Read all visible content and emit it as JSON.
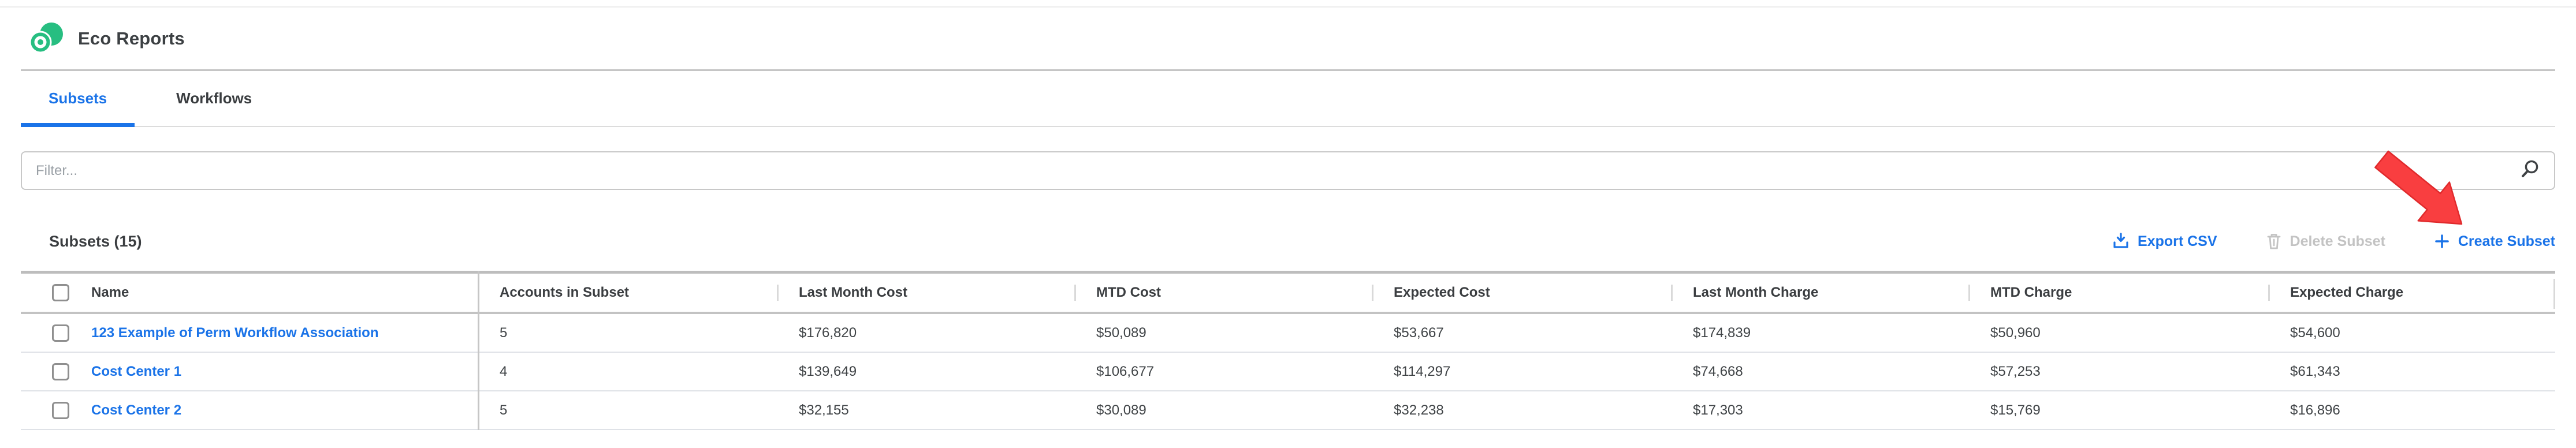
{
  "app": {
    "title": "Eco Reports"
  },
  "tabs": [
    {
      "label": "Subsets",
      "active": true
    },
    {
      "label": "Workflows",
      "active": false
    }
  ],
  "filter": {
    "placeholder": "Filter..."
  },
  "section": {
    "heading": "Subsets (15)"
  },
  "actions": {
    "export_label": "Export CSV",
    "delete_label": "Delete Subset",
    "create_label": "Create Subset",
    "create_plus": "+"
  },
  "icons": {
    "logo": "eco-reports-logo",
    "search": "search-icon",
    "download": "download-icon",
    "trash": "trash-icon",
    "plus": "plus-icon",
    "arrow": "red-annotation-arrow"
  },
  "colors": {
    "accent_blue": "#1a73e8",
    "brand_green": "#27be81",
    "arrow_red": "#f93e40",
    "disabled_gray": "#c3c3c3",
    "dark_text": "#3c4043"
  },
  "table": {
    "columns": [
      "Name",
      "Accounts in Subset",
      "Last Month Cost",
      "MTD Cost",
      "Expected Cost",
      "Last Month Charge",
      "MTD Charge",
      "Expected Charge"
    ],
    "rows": [
      {
        "name": "123 Example of Perm Workflow Association",
        "values": [
          "5",
          "$176,820",
          "$50,089",
          "$53,667",
          "$174,839",
          "$50,960",
          "$54,600"
        ]
      },
      {
        "name": "Cost Center 1",
        "values": [
          "4",
          "$139,649",
          "$106,677",
          "$114,297",
          "$74,668",
          "$57,253",
          "$61,343"
        ]
      },
      {
        "name": "Cost Center 2",
        "values": [
          "5",
          "$32,155",
          "$30,089",
          "$32,238",
          "$17,303",
          "$15,769",
          "$16,896"
        ]
      }
    ]
  }
}
